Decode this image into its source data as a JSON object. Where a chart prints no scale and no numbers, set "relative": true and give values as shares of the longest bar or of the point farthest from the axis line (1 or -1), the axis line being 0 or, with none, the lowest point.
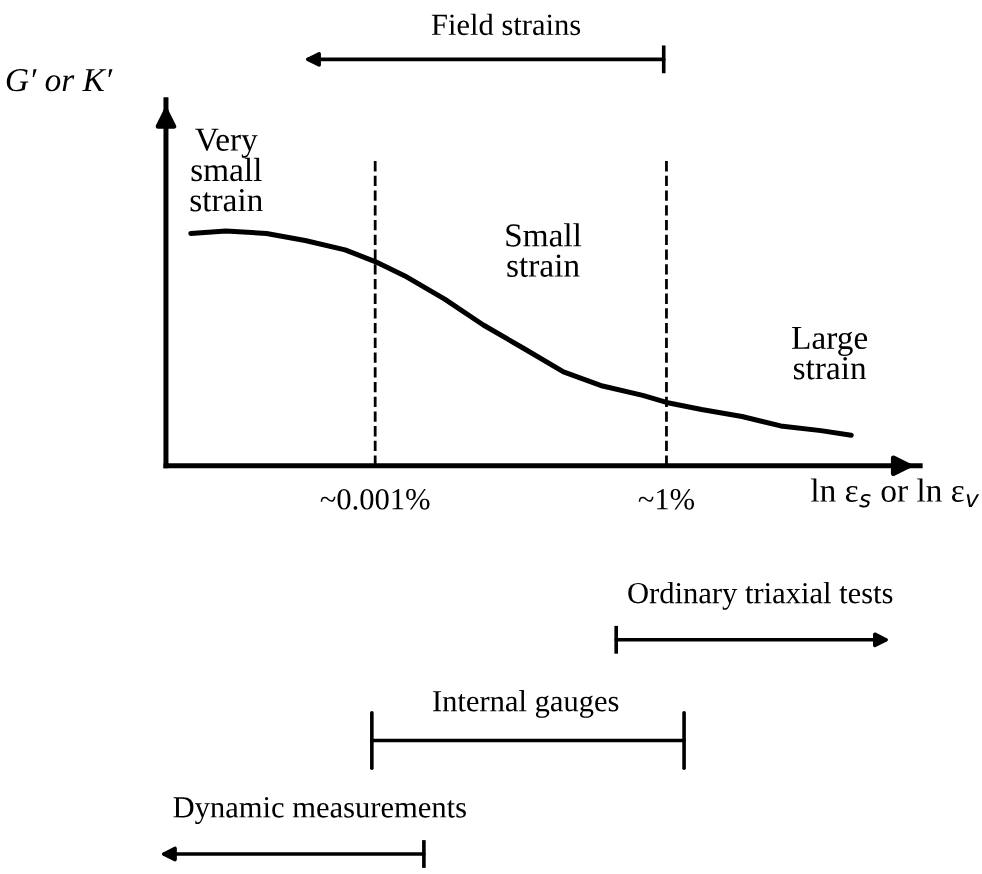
{
  "chart_data": {
    "type": "line",
    "relative": true,
    "log": "x",
    "ylabel": "G′ or K′",
    "xlabel": "ln ε$_{s}$ or ln ε$_{v}$",
    "x": [
      1.26e-05,
      2.9e-05,
      7.6e-05,
      0.00019,
      0.00049,
      0.001,
      0.002,
      0.0052,
      0.013,
      0.034,
      0.087,
      0.22,
      0.57,
      1,
      2.3,
      6,
      15,
      39,
      80
    ],
    "series": [
      {
        "color": "#000000",
        "values": [
          0.99,
          1.0,
          0.99,
          0.96,
          0.92,
          0.87,
          0.81,
          0.71,
          0.6,
          0.5,
          0.4,
          0.34,
          0.3,
          0.27,
          0.24,
          0.21,
          0.17,
          0.15,
          0.13
        ]
      }
    ],
    "xlim": [
      7e-06,
      410
    ],
    "xticks": [
      {
        "value": 0.001,
        "label": "~0.001%"
      },
      {
        "value": 1,
        "label": "~1%"
      }
    ],
    "ref_lines": [
      {
        "axis": "x",
        "value": 0.001,
        "line_style": "dashed",
        "color": "#000000"
      },
      {
        "axis": "x",
        "value": 1,
        "line_style": "dashed",
        "color": "#000000"
      }
    ],
    "annotations": [
      "Very\nsmall\nstrain",
      "Small\nstrain",
      "Large\nstrain",
      "Field strains",
      "Ordinary triaxial tests",
      "Internal gauges",
      "Dynamic measurements"
    ],
    "grid": false,
    "marker": "none",
    "line_style": "solid"
  }
}
